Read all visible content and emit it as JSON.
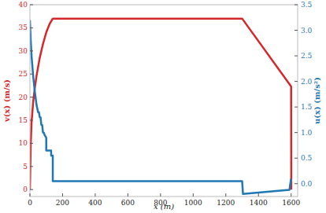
{
  "chart_data": {
    "type": "line",
    "xlabel": "x (m)",
    "ylabel": "v(x) (m/s)",
    "y2label": "u(x) (m/s²)",
    "xlim": [
      0,
      1640
    ],
    "xticks": [
      0,
      200,
      400,
      600,
      800,
      1000,
      1200,
      1400,
      1600
    ],
    "ylim": [
      -1.5,
      40
    ],
    "yticks": [
      0,
      5,
      10,
      15,
      20,
      25,
      30,
      35,
      40
    ],
    "y2lim": [
      -0.25,
      3.5
    ],
    "y2ticks": [
      {
        "value": 0,
        "label": "0.0"
      },
      {
        "value": 0.5,
        "label": "0.5"
      },
      {
        "value": 1,
        "label": "1.0"
      },
      {
        "value": 1.5,
        "label": "1.5"
      },
      {
        "value": 2,
        "label": "2.0"
      },
      {
        "value": 2.5,
        "label": "2.5"
      },
      {
        "value": 3,
        "label": "3.0"
      },
      {
        "value": 3.5,
        "label": "3.5"
      }
    ],
    "grid": false,
    "series": [
      {
        "name": "v(x)",
        "color": "#d62728",
        "axis": "y",
        "x": [
          0,
          5,
          10,
          20,
          30,
          40,
          60,
          80,
          100,
          120,
          140,
          1300,
          1600,
          1601
        ],
        "values": [
          0,
          10,
          14.5,
          19,
          22,
          24.5,
          28.5,
          31.5,
          34,
          35.8,
          37,
          37,
          22.3,
          0
        ]
      },
      {
        "name": "u(x)",
        "color": "#1f77b4",
        "axis": "y2",
        "x": [
          0,
          5,
          10,
          20,
          30,
          40,
          50,
          55,
          60,
          65,
          70,
          75,
          80,
          85,
          90,
          100,
          100,
          130,
          130,
          140,
          140,
          1300,
          1305,
          1590,
          1595,
          1600
        ],
        "values": [
          3.2,
          2.8,
          2.5,
          2.1,
          1.8,
          1.55,
          1.4,
          1.4,
          1.3,
          1.3,
          1.15,
          1.15,
          1.0,
          1.0,
          0.95,
          0.9,
          0.65,
          0.65,
          0.55,
          0.55,
          0.05,
          0.05,
          -0.2,
          -0.12,
          0.0,
          0.1
        ]
      }
    ]
  }
}
